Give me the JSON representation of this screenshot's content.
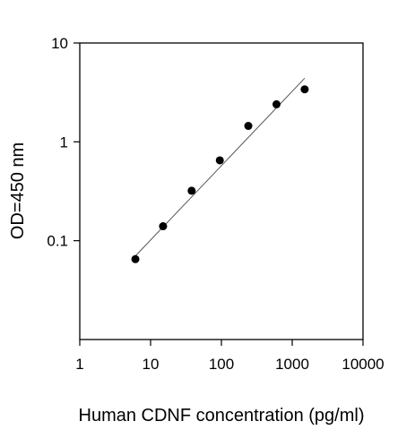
{
  "chart_data": {
    "type": "scatter",
    "title": "",
    "xlabel": "Human CDNF concentration (pg/ml)",
    "ylabel": "OD=450 nm",
    "x_scale": "log",
    "y_scale": "log",
    "xlim": [
      1,
      10000
    ],
    "ylim": [
      0.01,
      10
    ],
    "x_ticks": [
      1,
      10,
      100,
      1000,
      10000
    ],
    "x_tick_labels": [
      "1",
      "10",
      "100",
      "1000",
      "10000"
    ],
    "y_ticks": [
      0.1,
      1,
      10
    ],
    "y_tick_labels": [
      "0.1",
      "1",
      "10"
    ],
    "grid": false,
    "legend": "none",
    "points": [
      {
        "x": 6.1,
        "y": 0.065
      },
      {
        "x": 15,
        "y": 0.14
      },
      {
        "x": 38,
        "y": 0.32
      },
      {
        "x": 95,
        "y": 0.65
      },
      {
        "x": 240,
        "y": 1.45
      },
      {
        "x": 600,
        "y": 2.4
      },
      {
        "x": 1500,
        "y": 3.4
      }
    ],
    "fit_line": {
      "x": [
        6.1,
        1500
      ],
      "y": [
        0.07,
        4.4
      ]
    },
    "colors": {
      "points": "#000000",
      "line": "#555555",
      "axes": "#000000"
    }
  }
}
